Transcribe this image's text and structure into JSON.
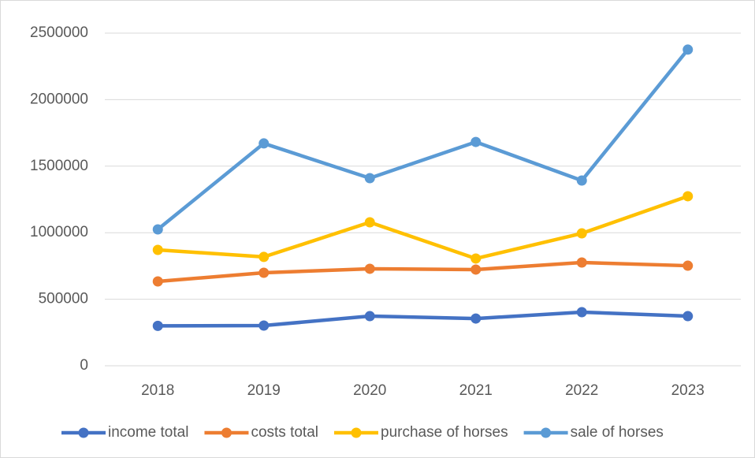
{
  "chart_data": {
    "type": "line",
    "categories": [
      "2018",
      "2019",
      "2020",
      "2021",
      "2022",
      "2023"
    ],
    "series": [
      {
        "name": "income total",
        "color": "#4472c4",
        "values": [
          300000,
          302000,
          373000,
          355000,
          403000,
          373000
        ]
      },
      {
        "name": "costs total",
        "color": "#ed7d31",
        "values": [
          634000,
          699000,
          729000,
          723000,
          776000,
          752000
        ]
      },
      {
        "name": "purchase of horses",
        "color": "#ffc000",
        "values": [
          871000,
          818000,
          1078000,
          806000,
          995000,
          1274000
        ]
      },
      {
        "name": "sale of horses",
        "color": "#5b9bd5",
        "values": [
          1025000,
          1671000,
          1410000,
          1682000,
          1392000,
          2376000
        ]
      }
    ],
    "ylim": [
      0,
      2500000
    ],
    "yticks": [
      0,
      500000,
      1000000,
      1500000,
      2000000,
      2500000
    ],
    "grid": true,
    "legend": "bottom"
  }
}
